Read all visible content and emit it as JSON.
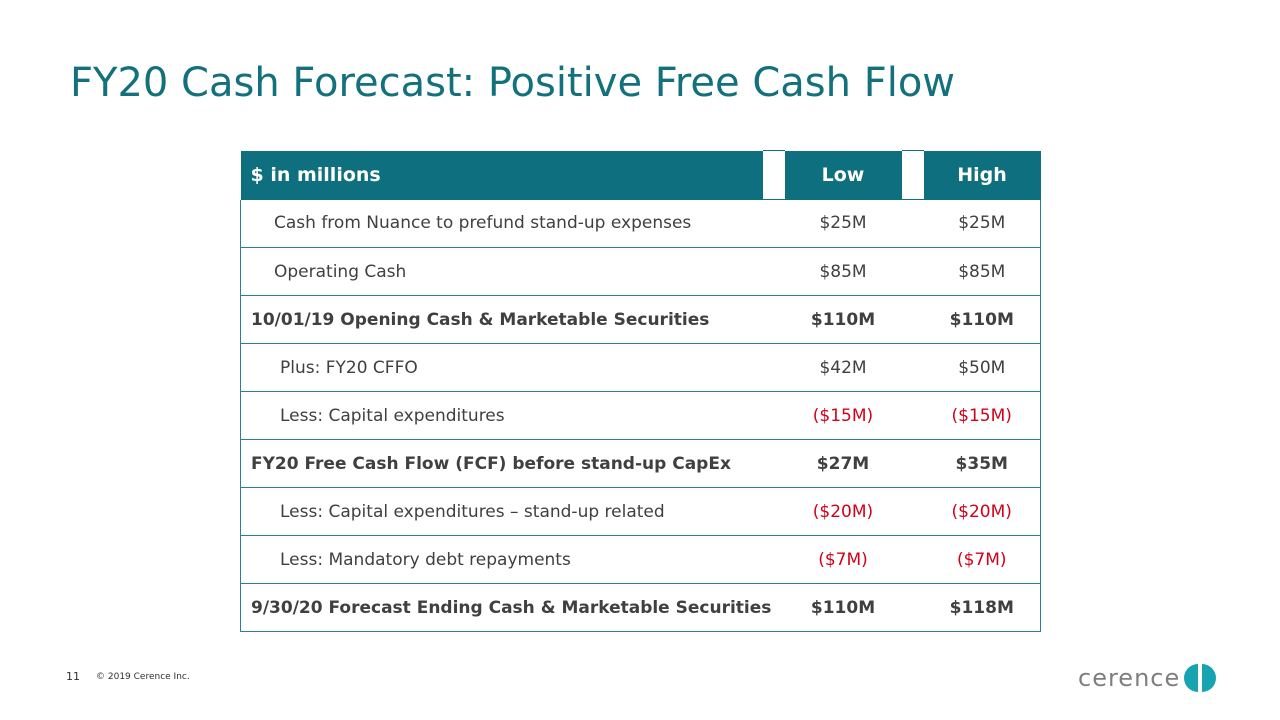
{
  "title": "FY20 Cash Forecast: Positive Free Cash Flow",
  "table": {
    "headers": {
      "label": "$ in millions",
      "low": "Low",
      "high": "High"
    },
    "rows": [
      {
        "label": "Cash from Nuance to prefund stand-up expenses",
        "low": "$25M",
        "high": "$25M",
        "style": "indent1"
      },
      {
        "label": "Operating Cash",
        "low": "$85M",
        "high": "$85M",
        "style": "indent1"
      },
      {
        "label": "10/01/19 Opening Cash & Marketable Securities",
        "low": "$110M",
        "high": "$110M",
        "style": "bold"
      },
      {
        "label": "Plus: FY20 CFFO",
        "low": "$42M",
        "high": "$50M",
        "style": "indent2"
      },
      {
        "label": "Less: Capital expenditures",
        "low": "($15M)",
        "high": "($15M)",
        "style": "indent2",
        "negative": true
      },
      {
        "label": "FY20 Free Cash Flow (FCF) before stand-up CapEx",
        "low": "$27M",
        "high": "$35M",
        "style": "bold"
      },
      {
        "label": "Less: Capital expenditures – stand-up related",
        "low": "($20M)",
        "high": "($20M)",
        "style": "indent2",
        "negative": true
      },
      {
        "label": "Less: Mandatory debt repayments",
        "low": "($7M)",
        "high": "($7M)",
        "style": "indent2",
        "negative": true
      },
      {
        "label": "9/30/20 Forecast Ending Cash & Marketable Securities",
        "low": "$110M",
        "high": "$118M",
        "style": "bold"
      }
    ]
  },
  "footer": {
    "page_number": "11",
    "copyright": "© 2019 Cerence Inc."
  },
  "logo": {
    "text": "cerence",
    "icon": "cerence-logo-icon"
  },
  "colors": {
    "brand_teal": "#0e6f7e",
    "title_teal": "#13707d",
    "negative_red": "#d0021b",
    "logo_icon_teal": "#17a3b0"
  }
}
